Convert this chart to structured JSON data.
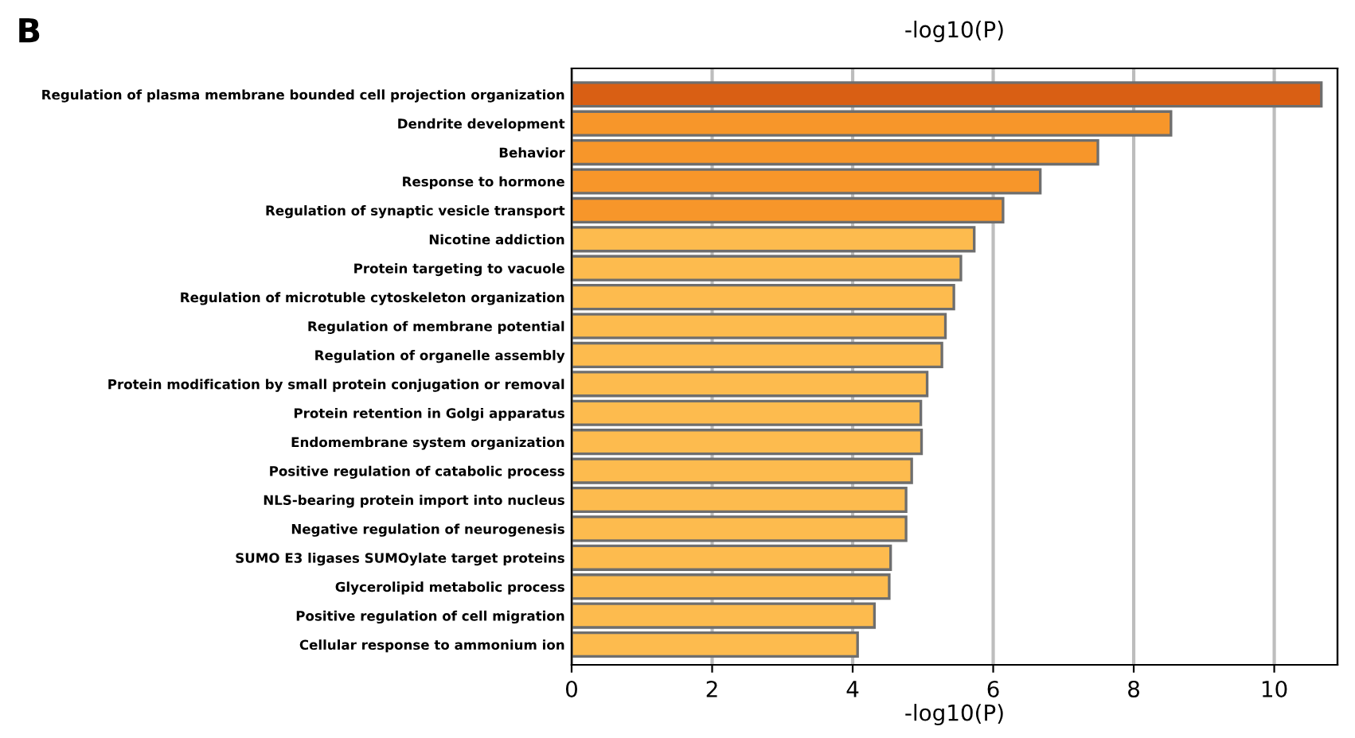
{
  "chart_data": {
    "type": "bar",
    "orientation": "horizontal",
    "title": "B",
    "categories": [
      "Regulation of plasma membrane bounded cell projection organization",
      "Dendrite development",
      "Behavior",
      "Response to hormone",
      "Regulation of synaptic vesicle transport",
      "Nicotine addiction",
      "Protein targeting to vacuole",
      "Regulation of microtuble cytoskeleton organization",
      "Regulation of membrane potential",
      "Regulation of organelle assembly",
      "Protein modification by small protein conjugation or removal",
      "Protein retention in Golgi apparatus",
      "Endomembrane system organization",
      "Positive regulation of catabolic process",
      "NLS-bearing protein import into nucleus",
      "Negative regulation of neurogenesis",
      "SUMO E3 ligases SUMOylate target proteins",
      "Glycerolipid metabolic process",
      "Positive regulation of cell migration",
      "Cellular response to ammonium ion"
    ],
    "values": [
      10.67,
      8.53,
      7.49,
      6.67,
      6.14,
      5.73,
      5.54,
      5.44,
      5.32,
      5.27,
      5.06,
      4.97,
      4.98,
      4.84,
      4.76,
      4.76,
      4.54,
      4.52,
      4.31,
      4.07
    ],
    "colors": [
      "#d95f14",
      "#f7962a",
      "#f7962a",
      "#f7962a",
      "#f7962a",
      "#fdbb4e",
      "#fdbb4e",
      "#fdbb4e",
      "#fdbb4e",
      "#fdbb4e",
      "#fdbb4e",
      "#fdbb4e",
      "#fdbb4e",
      "#fdbb4e",
      "#fdbb4e",
      "#fdbb4e",
      "#fdbb4e",
      "#fdbb4e",
      "#fdbb4e",
      "#fdbb4e"
    ],
    "xlabel": "-log10(P)",
    "x2label": "-log10(P)",
    "xlim": [
      0,
      10.9
    ],
    "xticks": [
      0,
      2,
      4,
      6,
      8,
      10
    ],
    "grid": "x"
  }
}
